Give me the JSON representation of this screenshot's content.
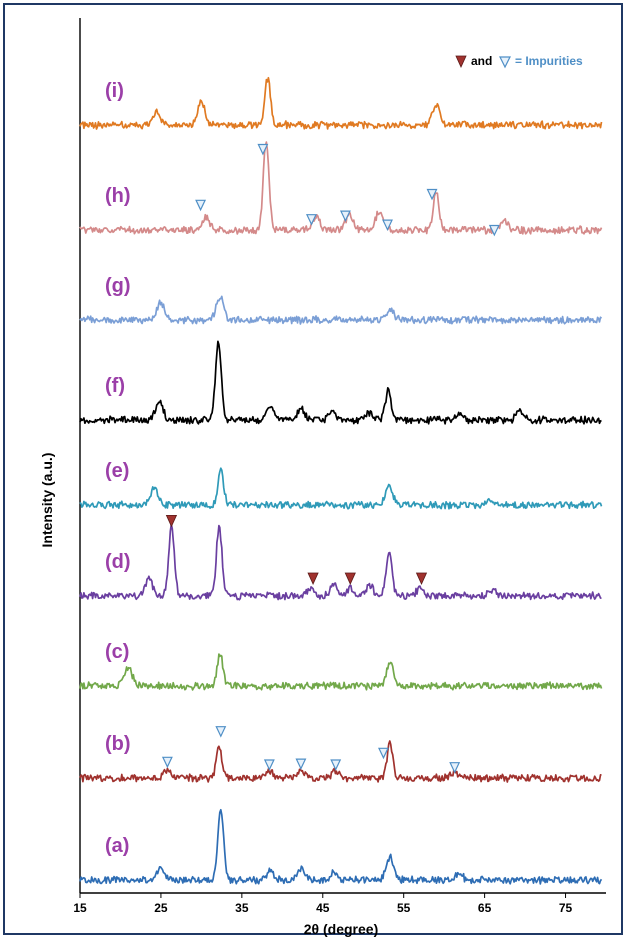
{
  "chart_data": {
    "type": "line",
    "xlabel": "2θ (degree)",
    "ylabel": "Intensity (a.u.)",
    "xlim": [
      15,
      80
    ],
    "xticks": [
      15,
      25,
      35,
      45,
      55,
      65,
      75
    ],
    "grid": false,
    "legend": {
      "placement": "top-right",
      "and_text": "and",
      "rest_text": "= Impurities",
      "filled_color": "#a0322e",
      "open_color": "#4f8fc6"
    },
    "label_color": "#9b3fa8",
    "series": [
      {
        "label": "(a)",
        "color": "#2e6db4",
        "peaks": [
          [
            25,
            14
          ],
          [
            32.4,
            80
          ],
          [
            38.5,
            10
          ],
          [
            42.3,
            13
          ],
          [
            46.4,
            9
          ],
          [
            53.3,
            26
          ],
          [
            61.8,
            7
          ]
        ],
        "markers": []
      },
      {
        "label": "(b)",
        "color": "#a0322e",
        "peaks": [
          [
            25.8,
            8
          ],
          [
            32.2,
            34
          ],
          [
            38.4,
            7
          ],
          [
            42.3,
            9
          ],
          [
            46.6,
            8
          ],
          [
            53.3,
            38
          ],
          [
            61.3,
            6
          ]
        ],
        "markers": [
          {
            "x": 25.8,
            "y": 18,
            "kind": "open"
          },
          {
            "x": 32.4,
            "y": 52,
            "kind": "open"
          },
          {
            "x": 38.4,
            "y": 15,
            "kind": "open"
          },
          {
            "x": 42.3,
            "y": 16,
            "kind": "open"
          },
          {
            "x": 46.6,
            "y": 15,
            "kind": "open"
          },
          {
            "x": 52.5,
            "y": 28,
            "kind": "open"
          },
          {
            "x": 61.3,
            "y": 12,
            "kind": "open"
          }
        ]
      },
      {
        "label": "(c)",
        "color": "#72a84a",
        "peaks": [
          [
            21,
            20
          ],
          [
            32.3,
            35
          ],
          [
            53.3,
            26
          ]
        ],
        "markers": []
      },
      {
        "label": "(d)",
        "color": "#6a3fa0",
        "peaks": [
          [
            23.5,
            20
          ],
          [
            26.3,
            76
          ],
          [
            32.2,
            76
          ],
          [
            43.5,
            9
          ],
          [
            46.4,
            14
          ],
          [
            48.4,
            8
          ],
          [
            50.8,
            12
          ],
          [
            53.2,
            50
          ],
          [
            57,
            8
          ],
          [
            66,
            8
          ]
        ],
        "markers": [
          {
            "x": 26.3,
            "y": 84,
            "kind": "filled"
          },
          {
            "x": 43.8,
            "y": 20,
            "kind": "filled"
          },
          {
            "x": 48.4,
            "y": 20,
            "kind": "filled"
          },
          {
            "x": 57.2,
            "y": 20,
            "kind": "filled"
          }
        ]
      },
      {
        "label": "(e)",
        "color": "#2f9ab8",
        "peaks": [
          [
            24.2,
            18
          ],
          [
            32.4,
            38
          ],
          [
            53.2,
            20
          ],
          [
            65.8,
            6
          ]
        ],
        "markers": []
      },
      {
        "label": "(f)",
        "color": "#000000",
        "peaks": [
          [
            24.8,
            22
          ],
          [
            32.1,
            88
          ],
          [
            38.5,
            14
          ],
          [
            42.3,
            12
          ],
          [
            46.2,
            10
          ],
          [
            50.8,
            8
          ],
          [
            53.1,
            34
          ],
          [
            61.8,
            6
          ],
          [
            69.4,
            10
          ]
        ],
        "markers": []
      },
      {
        "label": "(g)",
        "color": "#7b9fd6",
        "peaks": [
          [
            25,
            20
          ],
          [
            32.3,
            26
          ],
          [
            53.3,
            12
          ]
        ],
        "markers": []
      },
      {
        "label": "(h)",
        "color": "#d48a8a",
        "peaks": [
          [
            30.5,
            14
          ],
          [
            38,
            100
          ],
          [
            44.2,
            16
          ],
          [
            48.3,
            18
          ],
          [
            52,
            20
          ],
          [
            59,
            44
          ],
          [
            67.5,
            10
          ]
        ],
        "markers": [
          {
            "x": 29.9,
            "y": 28,
            "kind": "open"
          },
          {
            "x": 37.6,
            "y": 90,
            "kind": "open"
          },
          {
            "x": 43.6,
            "y": 12,
            "kind": "open"
          },
          {
            "x": 47.8,
            "y": 16,
            "kind": "open"
          },
          {
            "x": 53,
            "y": 6,
            "kind": "open"
          },
          {
            "x": 58.5,
            "y": 40,
            "kind": "open"
          },
          {
            "x": 66.2,
            "y": 0,
            "kind": "open"
          }
        ]
      },
      {
        "label": "(i)",
        "color": "#e07a22",
        "peaks": [
          [
            24.5,
            15
          ],
          [
            30,
            26
          ],
          [
            38.2,
            52
          ],
          [
            59,
            24
          ]
        ],
        "markers": []
      }
    ]
  }
}
